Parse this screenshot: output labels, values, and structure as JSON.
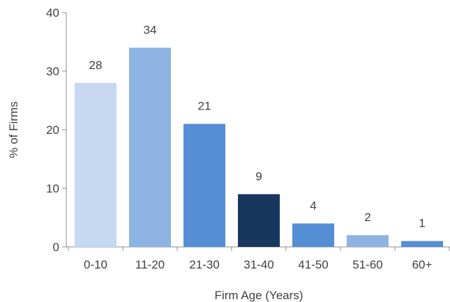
{
  "chart_data": {
    "type": "bar",
    "title": "",
    "xlabel": "Firm Age (Years)",
    "ylabel": "% of Firms",
    "categories": [
      "0-10",
      "11-20",
      "21-30",
      "31-40",
      "41-50",
      "51-60",
      "60+"
    ],
    "values": [
      28,
      34,
      21,
      9,
      4,
      2,
      1
    ],
    "data_labels": [
      "28",
      "34",
      "21",
      "9",
      "4",
      "2",
      "1"
    ],
    "ylim": [
      0,
      40
    ],
    "yticks": [
      0,
      10,
      20,
      30,
      40
    ],
    "ytick_labels": [
      "0",
      "10",
      "20",
      "30",
      "40"
    ],
    "bar_colors": [
      "#c6d9f1",
      "#8db3e2",
      "#558ed5",
      "#17375e",
      "#558ed5",
      "#8db3e2",
      "#558ed5"
    ],
    "grid": false,
    "legend": "none"
  }
}
